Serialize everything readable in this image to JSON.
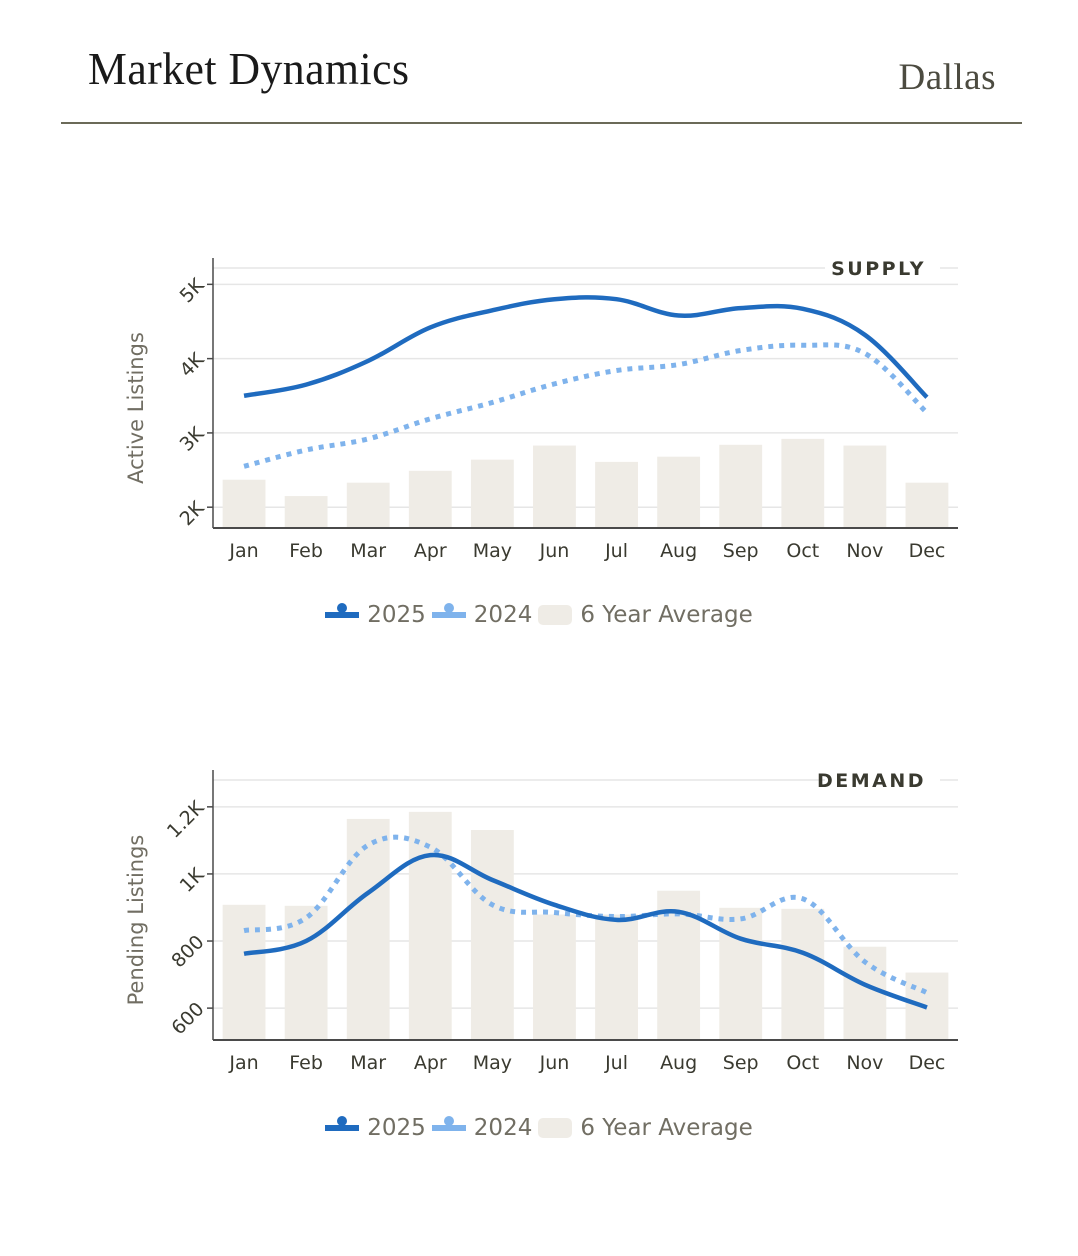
{
  "header": {
    "title": "Market Dynamics",
    "city": "Dallas"
  },
  "colors": {
    "series_2025": "#1f6bbf",
    "series_2024": "#7fb3ec",
    "average_bar": "#efece6",
    "axis": "#4a4a4a",
    "grid": "#e6e6e6",
    "text": "#3a3a30",
    "muted_text": "#716e63",
    "rule": "#6b6a58"
  },
  "legend": {
    "items": [
      {
        "label": "2025",
        "kind": "line",
        "color": "#1f6bbf"
      },
      {
        "label": "2024",
        "kind": "line",
        "color": "#7fb3ec"
      },
      {
        "label": "6 Year Average",
        "kind": "bar",
        "color": "#efece6"
      }
    ]
  },
  "chart_data": [
    {
      "type": "bar+line",
      "title": "SUPPLY",
      "xlabel": "",
      "ylabel": "Active Listings",
      "ylim": [
        1720,
        5220
      ],
      "yticks": [
        2000,
        3000,
        4000,
        5000
      ],
      "ytick_labels": [
        "2K",
        "3K",
        "4K",
        "5K"
      ],
      "grid": true,
      "legend_position": "bottom-center",
      "categories": [
        "Jan",
        "Feb",
        "Mar",
        "Apr",
        "May",
        "Jun",
        "Jul",
        "Aug",
        "Sep",
        "Oct",
        "Nov",
        "Dec"
      ],
      "series": [
        {
          "name": "6 Year Average",
          "kind": "bar",
          "values": [
            2370,
            2150,
            2330,
            2490,
            2640,
            2830,
            2610,
            2680,
            2840,
            2920,
            2830,
            2330
          ]
        },
        {
          "name": "2025",
          "kind": "line",
          "style": "solid",
          "values": [
            3500,
            3650,
            3970,
            4420,
            4650,
            4800,
            4800,
            4580,
            4680,
            4670,
            4320,
            3480
          ]
        },
        {
          "name": "2024",
          "kind": "line",
          "style": "dotted",
          "values": [
            2550,
            2770,
            2920,
            3190,
            3410,
            3660,
            3840,
            3920,
            4110,
            4180,
            4070,
            3270
          ]
        }
      ]
    },
    {
      "type": "bar+line",
      "title": "DEMAND",
      "xlabel": "",
      "ylabel": "Pending Listings",
      "ylim": [
        505,
        1280
      ],
      "yticks": [
        600,
        800,
        1000,
        1200
      ],
      "ytick_labels": [
        "600",
        "800",
        "1K",
        "1.2K"
      ],
      "grid": true,
      "legend_position": "bottom-center",
      "categories": [
        "Jan",
        "Feb",
        "Mar",
        "Apr",
        "May",
        "Jun",
        "Jul",
        "Aug",
        "Sep",
        "Oct",
        "Nov",
        "Dec"
      ],
      "series": [
        {
          "name": "6 Year Average",
          "kind": "bar",
          "values": [
            908,
            905,
            1164,
            1185,
            1131,
            879,
            879,
            950,
            899,
            896,
            783,
            706
          ]
        },
        {
          "name": "2025",
          "kind": "line",
          "style": "solid",
          "values": [
            762,
            800,
            944,
            1056,
            982,
            908,
            863,
            887,
            807,
            765,
            670,
            602
          ]
        },
        {
          "name": "2024",
          "kind": "line",
          "style": "dotted",
          "values": [
            831,
            869,
            1086,
            1080,
            908,
            885,
            873,
            881,
            866,
            926,
            738,
            646
          ]
        }
      ]
    }
  ]
}
